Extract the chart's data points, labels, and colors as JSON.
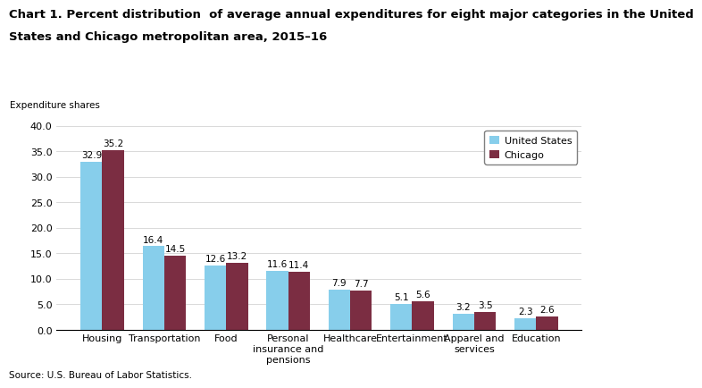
{
  "title_line1": "Chart 1. Percent distribution  of average annual expenditures for eight major categories in the United",
  "title_line2": "States and Chicago metropolitan area, 2015–16",
  "ylabel": "Expenditure shares",
  "categories": [
    "Housing",
    "Transportation",
    "Food",
    "Personal\ninsurance and\npensions",
    "Healthcare",
    "Entertainment",
    "Apparel and\nservices",
    "Education"
  ],
  "us_values": [
    32.9,
    16.4,
    12.6,
    11.6,
    7.9,
    5.1,
    3.2,
    2.3
  ],
  "chicago_values": [
    35.2,
    14.5,
    13.2,
    11.4,
    7.7,
    5.6,
    3.5,
    2.6
  ],
  "us_color": "#87CEEB",
  "chicago_color": "#7B2D42",
  "ylim": [
    0,
    40.0
  ],
  "yticks": [
    0.0,
    5.0,
    10.0,
    15.0,
    20.0,
    25.0,
    30.0,
    35.0,
    40.0
  ],
  "legend_labels": [
    "United States",
    "Chicago"
  ],
  "source_text": "Source: U.S. Bureau of Labor Statistics.",
  "bar_width": 0.35,
  "label_fontsize": 7.5,
  "title_fontsize": 9.5,
  "tick_fontsize": 8,
  "ylabel_fontsize": 7.5
}
